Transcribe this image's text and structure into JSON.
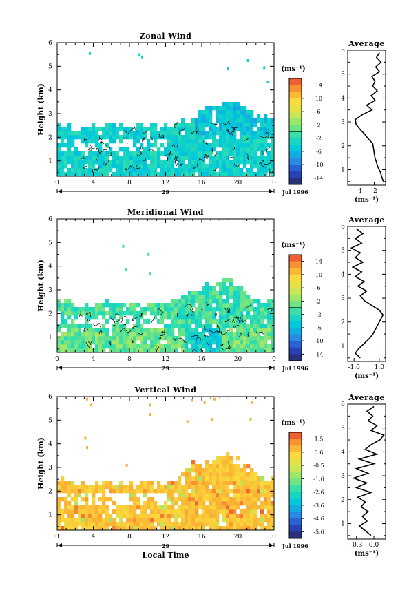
{
  "chart_data": [
    {
      "type": "heatmap",
      "title": "Zonal Wind",
      "ylabel": "Height (km)",
      "xlabel": "",
      "x_ticks": [
        "0",
        "4",
        "8",
        "12",
        "16",
        "20",
        "0"
      ],
      "xlim": [
        0,
        24
      ],
      "y_ticks": [
        "1",
        "2",
        "3",
        "4",
        "5",
        "6"
      ],
      "ylim": [
        0.35,
        6
      ],
      "day_label": "29",
      "month_label": "Jul 1996",
      "colorbar": {
        "unit": "(ms⁻¹)",
        "labels": [
          "14",
          "10",
          "6",
          "2",
          "-2",
          "-6",
          "-10",
          "-14"
        ],
        "range": [
          -16,
          16
        ],
        "zero_line": 0
      },
      "echo_top_km": [
        2.45,
        2.4,
        2.2,
        2.25,
        2.45,
        2.5,
        2.5,
        2.45,
        2.4,
        2.45,
        2.45,
        2.5,
        2.4,
        2.5,
        2.6,
        2.6,
        3.1,
        3.25,
        3.3,
        3.35,
        3.3,
        3.0,
        2.75,
        2.7,
        2.65
      ],
      "isolated_echoes": [
        [
          3.5,
          5.6
        ],
        [
          9.0,
          5.55
        ],
        [
          9.3,
          5.45
        ],
        [
          18.8,
          4.95
        ],
        [
          21.0,
          5.3
        ],
        [
          22.8,
          5.0
        ],
        [
          23.2,
          4.4
        ]
      ],
      "colormap": "cool",
      "values_range": [
        -6,
        0
      ],
      "profile": {
        "title": "Average",
        "xlabel": "(ms⁻¹)",
        "x_ticks": [
          "-4",
          "-2"
        ],
        "xlim": [
          -5.5,
          -0.5
        ],
        "height_km": [
          0.5,
          0.7,
          0.9,
          1.1,
          1.3,
          1.5,
          1.7,
          1.9,
          2.1,
          2.3,
          2.5,
          2.7,
          2.9,
          3.1,
          3.3,
          3.5,
          3.7,
          3.9,
          4.1,
          4.3,
          4.5,
          4.7,
          4.9,
          5.1,
          5.3,
          5.5,
          5.7,
          5.9
        ],
        "mean": [
          -0.8,
          -1.0,
          -1.2,
          -1.5,
          -1.7,
          -1.9,
          -2.0,
          -2.1,
          -2.2,
          -2.8,
          -3.3,
          -3.9,
          -4.4,
          -4.5,
          -3.6,
          -2.3,
          -3.0,
          -1.9,
          -2.4,
          -1.6,
          -2.2,
          -1.9,
          -2.3,
          -1.3,
          -1.8,
          -1.1,
          -1.7,
          -1.3
        ]
      }
    },
    {
      "type": "heatmap",
      "title": "Meridional Wind",
      "ylabel": "Height (km)",
      "xlabel": "",
      "x_ticks": [
        "0",
        "4",
        "8",
        "12",
        "16",
        "20",
        "0"
      ],
      "xlim": [
        0,
        24
      ],
      "y_ticks": [
        "1",
        "2",
        "3",
        "4",
        "5",
        "6"
      ],
      "ylim": [
        0.35,
        6
      ],
      "day_label": "29",
      "month_label": "Jul 1996",
      "colorbar": {
        "unit": "(ms⁻¹)",
        "labels": [
          "14",
          "10",
          "6",
          "2",
          "-2",
          "-6",
          "-10",
          "-14"
        ],
        "range": [
          -16,
          16
        ],
        "zero_line": 0
      },
      "echo_top_km": [
        2.45,
        2.4,
        2.3,
        2.25,
        2.3,
        2.4,
        2.35,
        2.4,
        2.3,
        2.35,
        2.35,
        2.4,
        2.45,
        2.5,
        2.7,
        2.9,
        3.05,
        3.2,
        3.3,
        3.35,
        3.1,
        2.8,
        2.5,
        2.45,
        2.4
      ],
      "isolated_echoes": [
        [
          7.2,
          4.9
        ],
        [
          10.0,
          4.55
        ],
        [
          7.5,
          3.9
        ],
        [
          10.2,
          3.75
        ]
      ],
      "colormap": "mixed",
      "values_range": [
        -8,
        4
      ],
      "profile": {
        "title": "Average",
        "xlabel": "(ms⁻¹)",
        "x_ticks": [
          "-1.0",
          "1.0"
        ],
        "xlim": [
          -1.5,
          1.5
        ],
        "height_km": [
          0.5,
          0.7,
          0.9,
          1.1,
          1.3,
          1.5,
          1.7,
          1.9,
          2.1,
          2.3,
          2.5,
          2.7,
          2.9,
          3.1,
          3.3,
          3.5,
          3.7,
          3.9,
          4.1,
          4.3,
          4.5,
          4.7,
          4.9,
          5.1,
          5.3,
          5.5,
          5.7,
          5.9
        ],
        "mean": [
          -0.5,
          -0.9,
          -0.6,
          -0.2,
          0.2,
          0.5,
          0.7,
          0.9,
          1.1,
          1.3,
          1.0,
          0.4,
          -0.2,
          -0.5,
          0.0,
          -0.7,
          -0.2,
          -0.9,
          -0.4,
          -1.1,
          -0.3,
          -0.9,
          -0.5,
          -1.2,
          -0.4,
          -0.9,
          -0.3,
          -0.8
        ]
      }
    },
    {
      "type": "heatmap",
      "title": "Vertical Wind",
      "ylabel": "Height (km)",
      "xlabel": "Local Time",
      "x_ticks": [
        "0",
        "4",
        "8",
        "12",
        "16",
        "20",
        "0"
      ],
      "xlim": [
        0,
        24
      ],
      "y_ticks": [
        "1",
        "2",
        "3",
        "4",
        "5",
        "6"
      ],
      "ylim": [
        0.35,
        6
      ],
      "day_label": "29",
      "month_label": "Jul 1996",
      "colorbar": {
        "unit": "(ms⁻¹)",
        "labels": [
          "1.5",
          "0.6",
          "-0.5",
          "-1.6",
          "-2.6",
          "-3.6",
          "-4.6",
          "-5.6"
        ],
        "range": [
          -6.2,
          2.0
        ],
        "zero_line": null
      },
      "echo_top_km": [
        2.45,
        2.4,
        2.3,
        2.2,
        2.3,
        2.35,
        2.25,
        2.35,
        2.3,
        2.25,
        2.3,
        2.3,
        2.35,
        2.5,
        2.9,
        3.1,
        3.2,
        3.3,
        3.4,
        3.45,
        3.2,
        2.9,
        2.55,
        2.45,
        2.4
      ],
      "isolated_echoes": [
        [
          3.2,
          5.95
        ],
        [
          3.6,
          5.7
        ],
        [
          10.2,
          5.7
        ],
        [
          10.2,
          5.3
        ],
        [
          14.8,
          5.9
        ],
        [
          16.2,
          5.8
        ],
        [
          17.3,
          5.95
        ],
        [
          21.5,
          5.8
        ],
        [
          21.3,
          5.1
        ],
        [
          14.3,
          5.0
        ],
        [
          17.0,
          5.1
        ],
        [
          3.0,
          4.3
        ],
        [
          3.2,
          3.9
        ],
        [
          7.6,
          3.15
        ]
      ],
      "colormap": "vertical",
      "values_range": [
        -0.3,
        1.5
      ],
      "profile": {
        "title": "Average",
        "xlabel": "(ms⁻¹)",
        "x_ticks": [
          "-0.3",
          "0.0"
        ],
        "xlim": [
          -0.45,
          0.2
        ],
        "height_km": [
          0.5,
          0.7,
          0.9,
          1.1,
          1.3,
          1.5,
          1.7,
          1.9,
          2.1,
          2.3,
          2.5,
          2.7,
          2.9,
          3.1,
          3.3,
          3.5,
          3.7,
          3.9,
          4.1,
          4.3,
          4.5,
          4.7,
          4.9,
          5.1,
          5.3,
          5.5,
          5.7,
          5.9
        ],
        "mean": [
          -0.05,
          -0.15,
          -0.25,
          -0.12,
          -0.2,
          -0.1,
          -0.22,
          -0.15,
          -0.28,
          -0.05,
          -0.3,
          -0.12,
          -0.35,
          -0.1,
          -0.3,
          0.0,
          -0.25,
          0.05,
          -0.15,
          -0.05,
          0.1,
          0.17,
          -0.05,
          0.05,
          -0.1,
          -0.02,
          -0.12,
          0.0
        ]
      }
    }
  ]
}
